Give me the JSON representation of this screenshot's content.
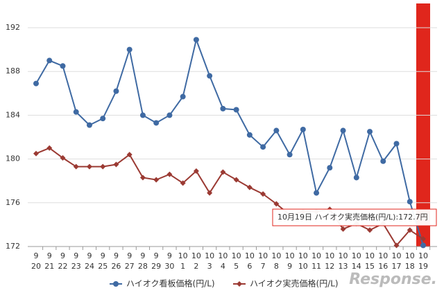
{
  "chart_data": {
    "type": "line",
    "categories": [
      [
        "9",
        "20"
      ],
      [
        "9",
        "21"
      ],
      [
        "9",
        "22"
      ],
      [
        "9",
        "23"
      ],
      [
        "9",
        "24"
      ],
      [
        "9",
        "25"
      ],
      [
        "9",
        "26"
      ],
      [
        "9",
        "27"
      ],
      [
        "9",
        "28"
      ],
      [
        "9",
        "29"
      ],
      [
        "9",
        "30"
      ],
      [
        "10",
        "1"
      ],
      [
        "10",
        "2"
      ],
      [
        "10",
        "3"
      ],
      [
        "10",
        "4"
      ],
      [
        "10",
        "5"
      ],
      [
        "10",
        "6"
      ],
      [
        "10",
        "7"
      ],
      [
        "10",
        "8"
      ],
      [
        "10",
        "9"
      ],
      [
        "10",
        "10"
      ],
      [
        "10",
        "11"
      ],
      [
        "10",
        "12"
      ],
      [
        "10",
        "13"
      ],
      [
        "10",
        "14"
      ],
      [
        "10",
        "15"
      ],
      [
        "10",
        "16"
      ],
      [
        "10",
        "17"
      ],
      [
        "10",
        "18"
      ],
      [
        "10",
        "19"
      ]
    ],
    "series": [
      {
        "name": "ハイオク看板価格(円/L)",
        "color": "#3f6aa3",
        "marker": "circle",
        "values": [
          186.9,
          189.0,
          188.5,
          184.3,
          183.1,
          183.7,
          186.2,
          190.0,
          184.0,
          183.3,
          184.0,
          185.7,
          190.9,
          187.6,
          184.6,
          184.5,
          182.2,
          181.1,
          182.6,
          180.4,
          182.7,
          176.9,
          179.2,
          182.6,
          178.3,
          182.5,
          179.8,
          181.4,
          176.1,
          172.1
        ]
      },
      {
        "name": "ハイオク実売価格(円/L)",
        "color": "#9b3a33",
        "marker": "diamond",
        "values": [
          180.5,
          181.0,
          180.1,
          179.3,
          179.3,
          179.3,
          179.5,
          180.4,
          178.3,
          178.1,
          178.6,
          177.8,
          178.9,
          176.9,
          178.8,
          178.1,
          177.4,
          176.8,
          175.9,
          174.9,
          175.2,
          175.2,
          175.4,
          173.6,
          174.1,
          173.5,
          174.1,
          172.1,
          173.5,
          172.7
        ]
      }
    ],
    "ylim": [
      172,
      192
    ],
    "yticks": [
      172,
      176,
      180,
      184,
      188,
      192
    ],
    "grid": true,
    "highlight_color": "#e0261c",
    "tooltip": "10月19日 ハイオク実売価格(円/L):172.7円",
    "watermark": "Response."
  }
}
